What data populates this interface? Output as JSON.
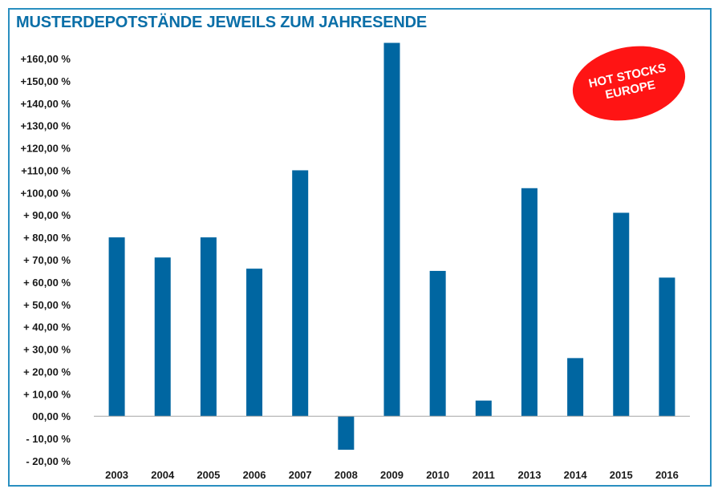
{
  "header": {
    "title": "MUSTERDEPOTSTÄNDE JEWEILS ZUM JAHRESENDE"
  },
  "badge": {
    "line1": "HOT STOCKS",
    "line2": "EUROPE",
    "color": "#ff1414"
  },
  "colors": {
    "bar": "#0066a1",
    "frame": "#2a8fc0",
    "title": "#0a6fa8",
    "axis": "#a6a6a6"
  },
  "chart_data": {
    "type": "bar",
    "title": "MUSTERDEPOTSTÄNDE JEWEILS ZUM JAHRESENDE",
    "xlabel": "",
    "ylabel": "",
    "categories": [
      "2003",
      "2004",
      "2005",
      "2006",
      "2007",
      "2008",
      "2009",
      "2010",
      "2011",
      "2013",
      "2014",
      "2015",
      "2016"
    ],
    "values": [
      80,
      71,
      80,
      66,
      110,
      -15,
      167,
      65,
      7,
      102,
      26,
      91,
      62
    ],
    "ylim": [
      -20,
      160
    ],
    "yticks": [
      {
        "value": 160,
        "label": "+160,00 %"
      },
      {
        "value": 150,
        "label": "+150,00 %"
      },
      {
        "value": 140,
        "label": "+140,00 %"
      },
      {
        "value": 130,
        "label": "+130,00 %"
      },
      {
        "value": 120,
        "label": "+120,00 %"
      },
      {
        "value": 110,
        "label": "+110,00 %"
      },
      {
        "value": 100,
        "label": "+100,00 %"
      },
      {
        "value": 90,
        "label": "+ 90,00 %"
      },
      {
        "value": 80,
        "label": "+ 80,00 %"
      },
      {
        "value": 70,
        "label": "+ 70,00 %"
      },
      {
        "value": 60,
        "label": "+ 60,00 %"
      },
      {
        "value": 50,
        "label": "+ 50,00 %"
      },
      {
        "value": 40,
        "label": "+ 40,00 %"
      },
      {
        "value": 30,
        "label": "+ 30,00 %"
      },
      {
        "value": 20,
        "label": "+ 20,00 %"
      },
      {
        "value": 10,
        "label": "+ 10,00 %"
      },
      {
        "value": 0,
        "label": "00,00 %"
      },
      {
        "value": -10,
        "label": "- 10,00 %"
      },
      {
        "value": -20,
        "label": "- 20,00 %"
      }
    ],
    "grid": false,
    "legend": "none"
  }
}
